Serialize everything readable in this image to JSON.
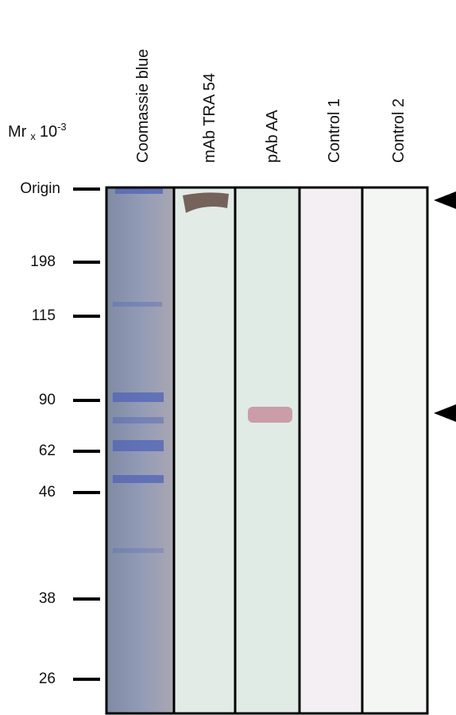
{
  "axis_label": {
    "main": "Mr",
    "sub": "x",
    "base": "10",
    "exponent": "-3"
  },
  "markers": [
    "Origin",
    "198",
    "115",
    "90",
    "62",
    "46",
    "38",
    "26"
  ],
  "lanes": [
    "Coomassie blue",
    "mAb TRA 54",
    "pAb AA",
    "Control 1",
    "Control 2"
  ]
}
